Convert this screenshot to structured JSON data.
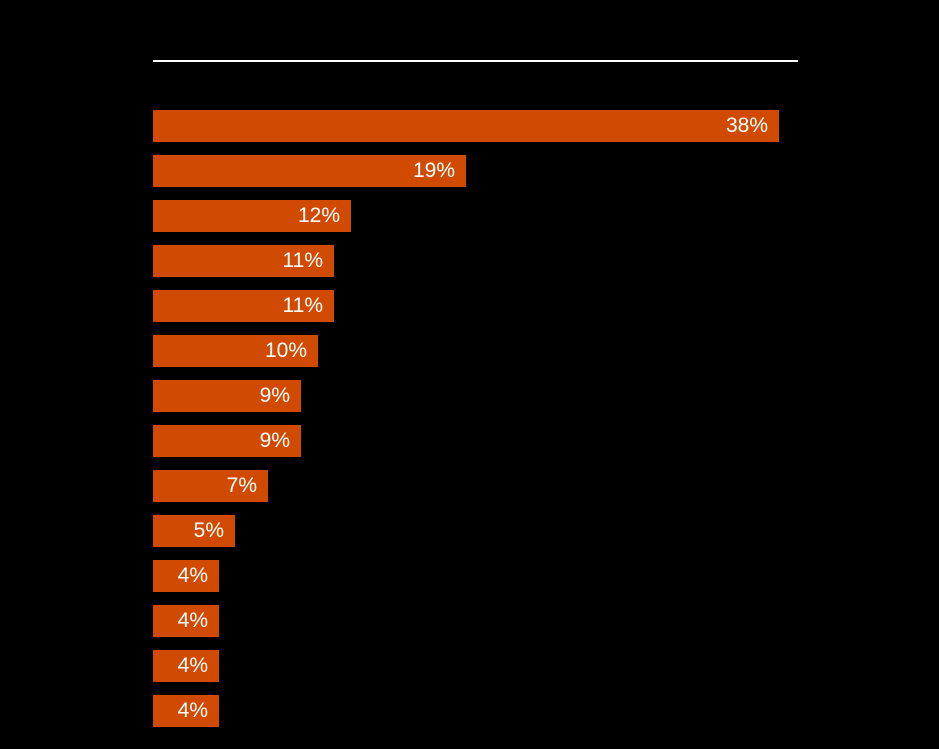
{
  "page": {
    "background_color": "#000000",
    "divider_color": "#ffffff"
  },
  "chart_data": {
    "type": "bar",
    "orientation": "horizontal",
    "values": [
      38,
      19,
      12,
      11,
      11,
      10,
      9,
      9,
      7,
      5,
      4,
      4,
      4,
      4
    ],
    "labels": [
      "38%",
      "19%",
      "12%",
      "11%",
      "11%",
      "10%",
      "9%",
      "9%",
      "7%",
      "5%",
      "4%",
      "4%",
      "4%",
      "4%"
    ],
    "bar_color": "#d04a02",
    "label_color": "#ffffff",
    "xlim": [
      0,
      39
    ],
    "grid": false,
    "legend": false
  }
}
